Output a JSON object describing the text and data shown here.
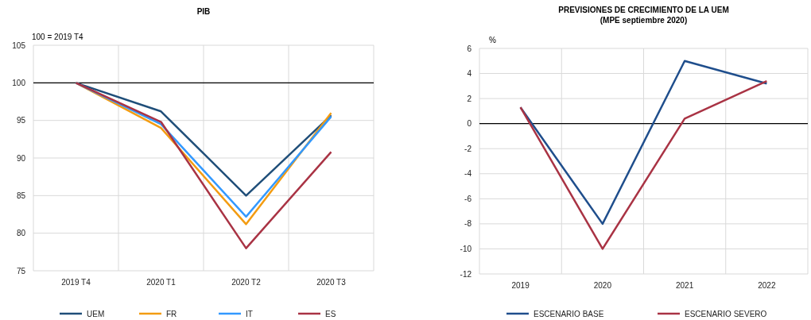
{
  "chart_data": [
    {
      "type": "line",
      "title": "PIB",
      "ylabel": "100 = 2019 T4",
      "categories": [
        "2019 T4",
        "2020 T1",
        "2020 T2",
        "2020 T3"
      ],
      "series": [
        {
          "name": "UEM",
          "color": "#1f4e79",
          "values": [
            100,
            96.2,
            85.0,
            95.7
          ]
        },
        {
          "name": "FR",
          "color": "#f39c12",
          "values": [
            100,
            94.0,
            81.2,
            96.0
          ]
        },
        {
          "name": "IT",
          "color": "#3399ff",
          "values": [
            100,
            94.5,
            82.2,
            95.5
          ]
        },
        {
          "name": "ES",
          "color": "#a93344",
          "values": [
            100,
            94.8,
            78.0,
            90.8
          ]
        }
      ],
      "ylim": [
        75,
        105
      ],
      "yticks": [
        75,
        80,
        85,
        90,
        95,
        100,
        105
      ],
      "grid": true,
      "legend": "bottom",
      "ref_lines": [
        {
          "axis": "y",
          "value": 100,
          "color": "#000000"
        }
      ]
    },
    {
      "type": "line",
      "title": "PREVISIONES DE CRECIMIENTO DE LA UEM",
      "subtitle": "(MPE septiembre 2020)",
      "ylabel": "%",
      "categories": [
        "2019",
        "2020",
        "2021",
        "2022"
      ],
      "series": [
        {
          "name": "ESCENARIO BASE",
          "color": "#1f4e8c",
          "values": [
            1.3,
            -8.0,
            5.0,
            3.2
          ]
        },
        {
          "name": "ESCENARIO SEVERO",
          "color": "#a93344",
          "values": [
            1.3,
            -10.0,
            0.4,
            3.4
          ]
        }
      ],
      "ylim": [
        -12,
        6
      ],
      "yticks": [
        -12,
        -10,
        -8,
        -6,
        -4,
        -2,
        0,
        2,
        4,
        6
      ],
      "grid": true,
      "legend": "bottom",
      "ref_lines": [
        {
          "axis": "y",
          "value": 0,
          "color": "#000000"
        }
      ]
    }
  ]
}
